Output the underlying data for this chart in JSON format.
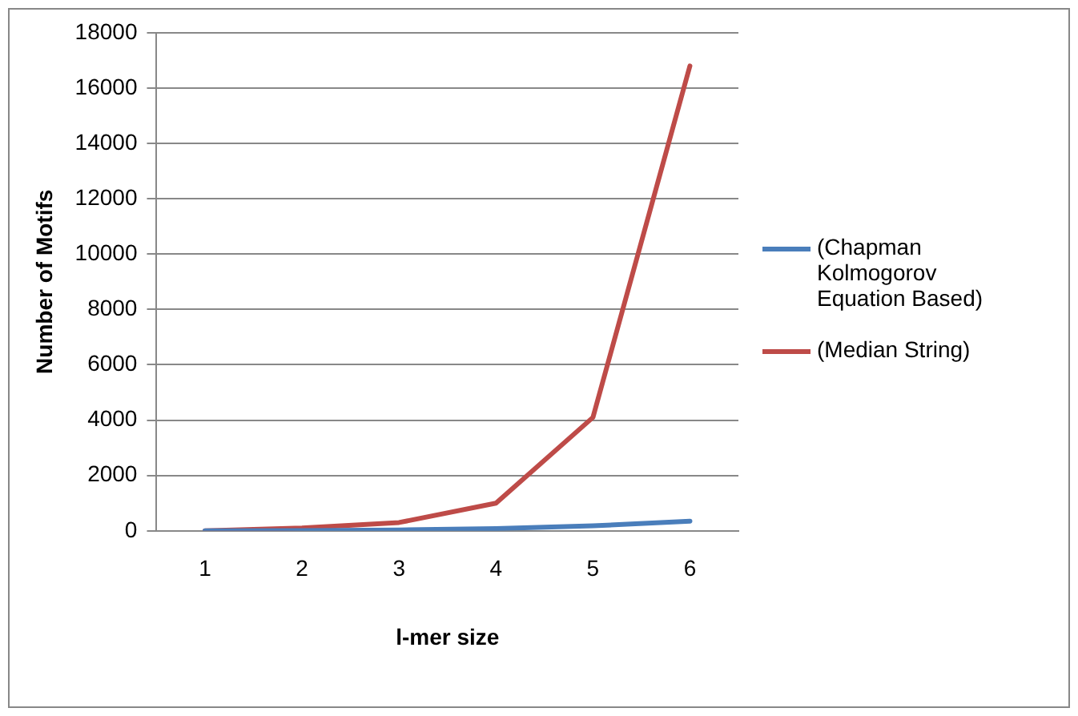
{
  "chart_data": {
    "type": "line",
    "xlabel": "l-mer size",
    "ylabel": "Number of Motifs",
    "categories": [
      "1",
      "2",
      "3",
      "4",
      "5",
      "6"
    ],
    "series": [
      {
        "name": "(Chapman Kolmogorov Equation Based)",
        "color": "#4a7ebb",
        "values": [
          0,
          10,
          30,
          80,
          180,
          350
        ]
      },
      {
        "name": "(Median String)",
        "color": "#be4b48",
        "values": [
          0,
          100,
          300,
          1000,
          4100,
          16800
        ]
      }
    ],
    "ylim": [
      0,
      18000
    ],
    "yticks": [
      0,
      2000,
      4000,
      6000,
      8000,
      10000,
      12000,
      14000,
      16000,
      18000
    ],
    "grid": "y",
    "legend": "right",
    "marker": "none",
    "line_style": "solid"
  }
}
